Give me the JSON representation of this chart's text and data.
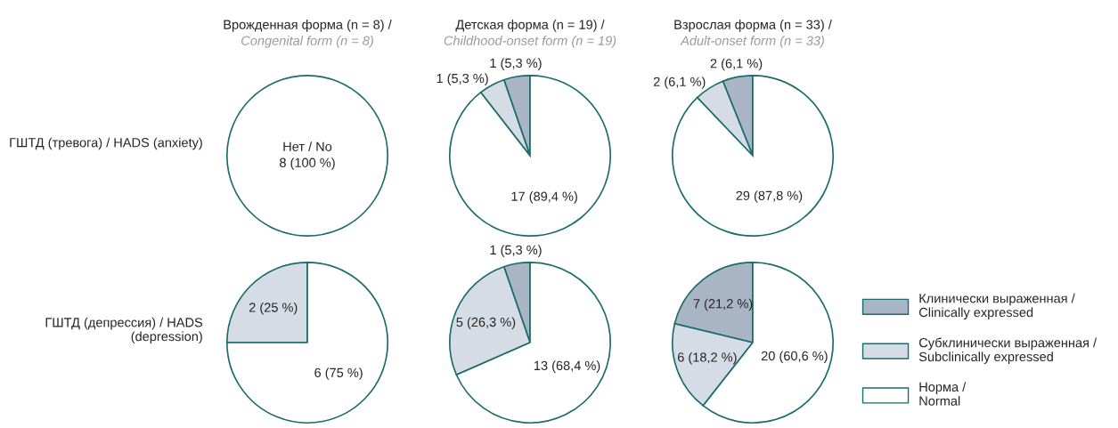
{
  "chart_data": [
    {
      "type": "pie",
      "title": "Врожденная форма (n = 8) /",
      "subtitle": "Congenital form (n = 8)",
      "ylabel": "ГШТД (тревога) / HADS (anxiety)",
      "annotations": [
        "Нет / No"
      ],
      "categories": [
        null
      ],
      "values": [
        8
      ],
      "colors": [
        "#ffffff"
      ],
      "value_labels": [
        "8 (100 %)"
      ]
    },
    {
      "type": "pie",
      "title": "Детская форма (n = 19) /",
      "subtitle": "Childhood-onset form (n = 19)",
      "categories": [
        null,
        null,
        null
      ],
      "values": [
        1,
        1,
        17
      ],
      "colors": [
        "#a9b5c4",
        "#d5dce5",
        "#ffffff"
      ],
      "value_labels": [
        "1 (5,3 %)",
        "1 (5,3 %)",
        "17 (89,4 %)"
      ]
    },
    {
      "type": "pie",
      "title": "Взрослая форма (n = 33) /",
      "subtitle": "Adult-onset form (n = 33)",
      "categories": [
        null,
        null,
        null
      ],
      "values": [
        2,
        2,
        29
      ],
      "colors": [
        "#a9b5c4",
        "#d5dce5",
        "#ffffff"
      ],
      "value_labels": [
        "2 (6,1 %)",
        "2 (6,1 %)",
        "29 (87,8 %)"
      ]
    },
    {
      "type": "pie",
      "ylabel": "ГШТД (депрессия) / HADS (depression)",
      "categories": [
        null,
        null
      ],
      "values": [
        2,
        6
      ],
      "colors": [
        "#d5dce5",
        "#ffffff"
      ],
      "value_labels": [
        "2 (25 %)",
        "6 (75 %)"
      ]
    },
    {
      "type": "pie",
      "categories": [
        null,
        null,
        null
      ],
      "values": [
        1,
        5,
        13
      ],
      "colors": [
        "#a9b5c4",
        "#d5dce5",
        "#ffffff"
      ],
      "value_labels": [
        "1 (5,3 %)",
        "5 (26,3 %)",
        "13 (68,4 %)"
      ]
    },
    {
      "type": "pie",
      "legend": "right",
      "categories": [
        "Клинически выраженная / Clinically expressed",
        "Субклинически выраженная / Subclinically expressed",
        "Норма / Normal"
      ],
      "values": [
        7,
        6,
        20
      ],
      "colors": [
        "#a9b5c4",
        "#d5dce5",
        "#ffffff"
      ],
      "value_labels": [
        "7 (21,2 %)",
        "6 (18,2 %)",
        "20 (60,6 %)"
      ]
    }
  ]
}
